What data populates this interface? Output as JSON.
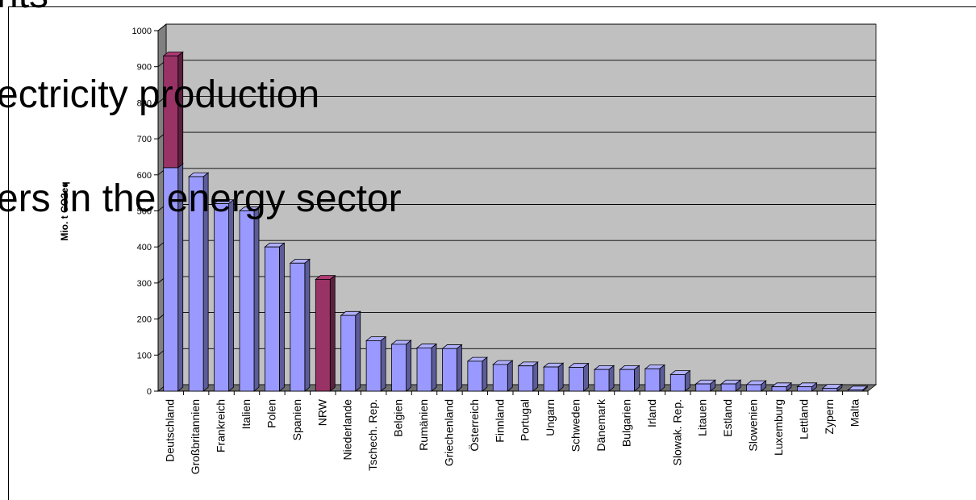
{
  "slide": {
    "top_fragment": "nts",
    "line1": "ectricity production",
    "line2": "ers in the energy sector"
  },
  "chart_data": {
    "type": "bar",
    "stacked": true,
    "ylabel": "Mio. t CO2eq",
    "ylim": [
      0,
      1000
    ],
    "yticks": [
      0,
      100,
      200,
      300,
      400,
      500,
      600,
      700,
      800,
      900,
      1000
    ],
    "grid": true,
    "categories": [
      "Deutschland",
      "Großbritannien",
      "Frankreich",
      "Italien",
      "Polen",
      "Spanien",
      "NRW",
      "Niederlande",
      "Tschech. Rep.",
      "Belgien",
      "Rumänien",
      "Griechenland",
      "Österreich",
      "Finnland",
      "Portugal",
      "Ungarn",
      "Schweden",
      "Dänemark",
      "Bulgarien",
      "Irland",
      "Slowak. Rep.",
      "Litauen",
      "Estland",
      "Slowenien",
      "Luxemburg",
      "Lettland",
      "Zypern",
      "Malta"
    ],
    "series": [
      {
        "values": [
          620,
          595,
          520,
          500,
          400,
          355,
          0,
          210,
          140,
          130,
          120,
          118,
          83,
          74,
          70,
          67,
          66,
          60,
          60,
          62,
          46,
          20,
          20,
          18,
          12,
          12,
          8,
          3
        ],
        "color": "#9999ff"
      },
      {
        "values": [
          310,
          0,
          0,
          0,
          0,
          0,
          310,
          0,
          0,
          0,
          0,
          0,
          0,
          0,
          0,
          0,
          0,
          0,
          0,
          0,
          0,
          0,
          0,
          0,
          0,
          0,
          0,
          0
        ],
        "color": "#993366"
      }
    ],
    "colors": {
      "plot_background": "#c0c0c0",
      "wall": "#808080",
      "gridline": "#000000"
    }
  }
}
